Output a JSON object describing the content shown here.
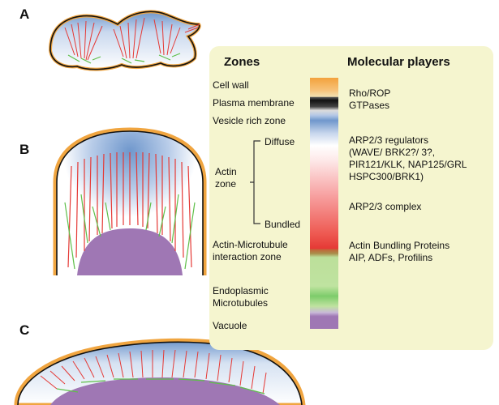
{
  "panels": {
    "a_label": "A",
    "b_label": "B",
    "c_label": "C"
  },
  "zones_header": "Zones",
  "players_header": "Molecular players",
  "zones": {
    "cell_wall": "Cell wall",
    "plasma_membrane": "Plasma membrane",
    "vesicle_rich": "Vesicle rich zone",
    "actin_zone": [
      "Actin",
      "zone"
    ],
    "diffuse": "Diffuse",
    "bundled": "Bundled",
    "actin_mt_interaction": [
      "Actin-Microtubule",
      "interaction zone"
    ],
    "endoplasmic_mt": [
      "Endoplasmic",
      "Microtubules"
    ],
    "vacuole": "Vacuole"
  },
  "players": {
    "rho_rop": [
      "Rho/ROP",
      "GTPases"
    ],
    "arp23_regulators": [
      "ARP2/3 regulators",
      "(WAVE/ BRK2?/ 3?,",
      "PIR121/KLK, NAP125/GRL",
      "HSPC300/BRK1)"
    ],
    "arp23_complex": "ARP2/3 complex",
    "actin_bundling": [
      "Actin Bundling Proteins",
      "AIP, ADFs, Profilins"
    ]
  },
  "colors": {
    "cell_wall": "#f0a540",
    "plasma_membrane": "#111111",
    "vesicle": "#6f97cc",
    "actin": "#e53935",
    "microtubule": "#7dcc6a",
    "vacuole": "#9f77b4",
    "panel_bg": "#f5f5cf"
  }
}
